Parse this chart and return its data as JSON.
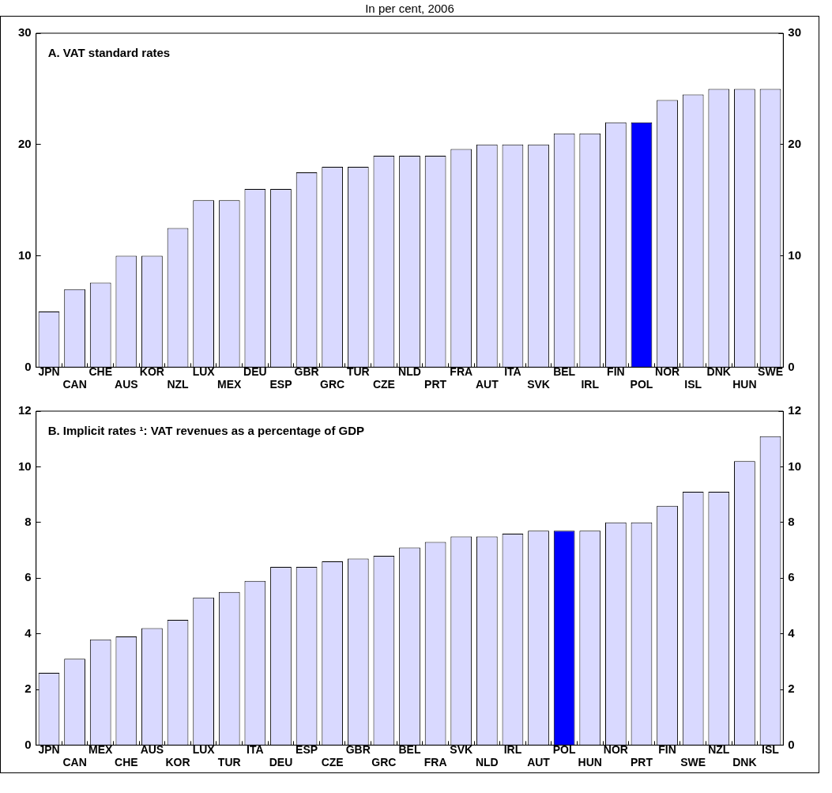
{
  "chart_data": [
    {
      "type": "bar",
      "subtitle": "In per cent, 2006",
      "title": "A. VAT standard rates",
      "categories": [
        "JPN",
        "CAN",
        "CHE",
        "AUS",
        "KOR",
        "NZL",
        "LUX",
        "MEX",
        "DEU",
        "ESP",
        "GBR",
        "GRC",
        "TUR",
        "CZE",
        "NLD",
        "PRT",
        "FRA",
        "AUT",
        "ITA",
        "SVK",
        "BEL",
        "IRL",
        "FIN",
        "POL",
        "NOR",
        "ISL",
        "DNK",
        "HUN",
        "SWE"
      ],
      "values": [
        5,
        7,
        7.6,
        10,
        10,
        12.5,
        15,
        15,
        16,
        16,
        17.5,
        18,
        18,
        19,
        19,
        19,
        19.6,
        20,
        20,
        20,
        21,
        21,
        22,
        22,
        24,
        24.5,
        25,
        25,
        25
      ],
      "colors": [
        "#d9d9ff",
        "#d9d9ff",
        "#d9d9ff",
        "#d9d9ff",
        "#d9d9ff",
        "#d9d9ff",
        "#d9d9ff",
        "#d9d9ff",
        "#d9d9ff",
        "#d9d9ff",
        "#d9d9ff",
        "#d9d9ff",
        "#d9d9ff",
        "#d9d9ff",
        "#d9d9ff",
        "#d9d9ff",
        "#d9d9ff",
        "#d9d9ff",
        "#d9d9ff",
        "#d9d9ff",
        "#d9d9ff",
        "#d9d9ff",
        "#d9d9ff",
        "#0000ff",
        "#d9d9ff",
        "#d9d9ff",
        "#d9d9ff",
        "#d9d9ff",
        "#d9d9ff"
      ],
      "ylim": [
        0,
        30
      ],
      "yticks": [
        0,
        10,
        20,
        30
      ],
      "y2lim": [
        0,
        30
      ],
      "y2ticks": [
        0,
        10,
        20,
        30
      ],
      "grid": false,
      "legend": false
    },
    {
      "type": "bar",
      "title": "B. Implicit rates ¹: VAT revenues as a percentage of GDP",
      "categories": [
        "JPN",
        "CAN",
        "MEX",
        "CHE",
        "AUS",
        "KOR",
        "LUX",
        "TUR",
        "ITA",
        "DEU",
        "ESP",
        "CZE",
        "GBR",
        "GRC",
        "BEL",
        "FRA",
        "SVK",
        "NLD",
        "IRL",
        "AUT",
        "POL",
        "HUN",
        "NOR",
        "PRT",
        "FIN",
        "SWE",
        "NZL",
        "DNK",
        "ISL"
      ],
      "values": [
        2.6,
        3.1,
        3.8,
        3.9,
        4.2,
        4.5,
        5.3,
        5.5,
        5.9,
        6.4,
        6.4,
        6.6,
        6.7,
        6.8,
        7.1,
        7.3,
        7.5,
        7.5,
        7.6,
        7.7,
        7.7,
        7.7,
        8.0,
        8.0,
        8.6,
        9.1,
        9.1,
        10.2,
        11.1
      ],
      "colors": [
        "#d9d9ff",
        "#d9d9ff",
        "#d9d9ff",
        "#d9d9ff",
        "#d9d9ff",
        "#d9d9ff",
        "#d9d9ff",
        "#d9d9ff",
        "#d9d9ff",
        "#d9d9ff",
        "#d9d9ff",
        "#d9d9ff",
        "#d9d9ff",
        "#d9d9ff",
        "#d9d9ff",
        "#d9d9ff",
        "#d9d9ff",
        "#d9d9ff",
        "#d9d9ff",
        "#d9d9ff",
        "#0000ff",
        "#d9d9ff",
        "#d9d9ff",
        "#d9d9ff",
        "#d9d9ff",
        "#d9d9ff",
        "#d9d9ff",
        "#d9d9ff",
        "#d9d9ff"
      ],
      "ylim": [
        0,
        12
      ],
      "yticks": [
        0,
        2,
        4,
        6,
        8,
        10,
        12
      ],
      "y2lim": [
        0,
        12
      ],
      "y2ticks": [
        0,
        2,
        4,
        6,
        8,
        10,
        12
      ],
      "grid": false,
      "legend": false
    }
  ]
}
